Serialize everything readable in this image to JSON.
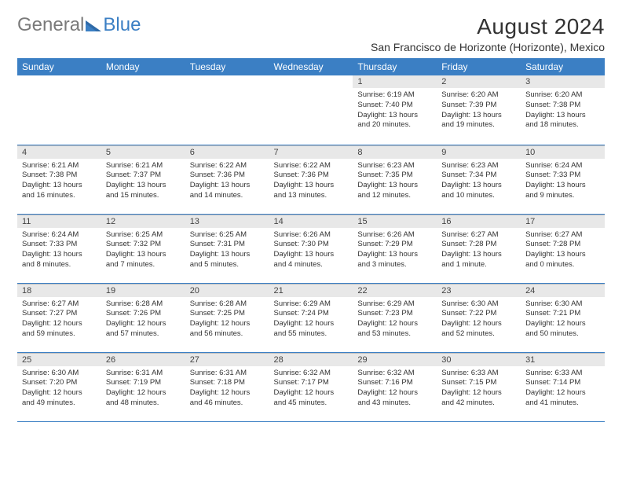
{
  "brand": {
    "general": "General",
    "blue": "Blue"
  },
  "title": "August 2024",
  "location": "San Francisco de Horizonte (Horizonte), Mexico",
  "columns": [
    "Sunday",
    "Monday",
    "Tuesday",
    "Wednesday",
    "Thursday",
    "Friday",
    "Saturday"
  ],
  "colors": {
    "header_bg": "#3b7fc4",
    "header_text": "#ffffff",
    "daynum_bg": "#e8e8e8",
    "row_border": "#3b7fc4",
    "logo_gray": "#7a7a7a",
    "logo_blue": "#3b7fc4"
  },
  "fonts": {
    "title_size_pt": 21,
    "location_size_pt": 10.5,
    "th_size_pt": 9,
    "cell_size_pt": 7
  },
  "first_weekday": 4,
  "days": [
    {
      "n": "1",
      "sunrise": "6:19 AM",
      "sunset": "7:40 PM",
      "dl1": "13 hours",
      "dl2": "and 20 minutes."
    },
    {
      "n": "2",
      "sunrise": "6:20 AM",
      "sunset": "7:39 PM",
      "dl1": "13 hours",
      "dl2": "and 19 minutes."
    },
    {
      "n": "3",
      "sunrise": "6:20 AM",
      "sunset": "7:38 PM",
      "dl1": "13 hours",
      "dl2": "and 18 minutes."
    },
    {
      "n": "4",
      "sunrise": "6:21 AM",
      "sunset": "7:38 PM",
      "dl1": "13 hours",
      "dl2": "and 16 minutes."
    },
    {
      "n": "5",
      "sunrise": "6:21 AM",
      "sunset": "7:37 PM",
      "dl1": "13 hours",
      "dl2": "and 15 minutes."
    },
    {
      "n": "6",
      "sunrise": "6:22 AM",
      "sunset": "7:36 PM",
      "dl1": "13 hours",
      "dl2": "and 14 minutes."
    },
    {
      "n": "7",
      "sunrise": "6:22 AM",
      "sunset": "7:36 PM",
      "dl1": "13 hours",
      "dl2": "and 13 minutes."
    },
    {
      "n": "8",
      "sunrise": "6:23 AM",
      "sunset": "7:35 PM",
      "dl1": "13 hours",
      "dl2": "and 12 minutes."
    },
    {
      "n": "9",
      "sunrise": "6:23 AM",
      "sunset": "7:34 PM",
      "dl1": "13 hours",
      "dl2": "and 10 minutes."
    },
    {
      "n": "10",
      "sunrise": "6:24 AM",
      "sunset": "7:33 PM",
      "dl1": "13 hours",
      "dl2": "and 9 minutes."
    },
    {
      "n": "11",
      "sunrise": "6:24 AM",
      "sunset": "7:33 PM",
      "dl1": "13 hours",
      "dl2": "and 8 minutes."
    },
    {
      "n": "12",
      "sunrise": "6:25 AM",
      "sunset": "7:32 PM",
      "dl1": "13 hours",
      "dl2": "and 7 minutes."
    },
    {
      "n": "13",
      "sunrise": "6:25 AM",
      "sunset": "7:31 PM",
      "dl1": "13 hours",
      "dl2": "and 5 minutes."
    },
    {
      "n": "14",
      "sunrise": "6:26 AM",
      "sunset": "7:30 PM",
      "dl1": "13 hours",
      "dl2": "and 4 minutes."
    },
    {
      "n": "15",
      "sunrise": "6:26 AM",
      "sunset": "7:29 PM",
      "dl1": "13 hours",
      "dl2": "and 3 minutes."
    },
    {
      "n": "16",
      "sunrise": "6:27 AM",
      "sunset": "7:28 PM",
      "dl1": "13 hours",
      "dl2": "and 1 minute."
    },
    {
      "n": "17",
      "sunrise": "6:27 AM",
      "sunset": "7:28 PM",
      "dl1": "13 hours",
      "dl2": "and 0 minutes."
    },
    {
      "n": "18",
      "sunrise": "6:27 AM",
      "sunset": "7:27 PM",
      "dl1": "12 hours",
      "dl2": "and 59 minutes."
    },
    {
      "n": "19",
      "sunrise": "6:28 AM",
      "sunset": "7:26 PM",
      "dl1": "12 hours",
      "dl2": "and 57 minutes."
    },
    {
      "n": "20",
      "sunrise": "6:28 AM",
      "sunset": "7:25 PM",
      "dl1": "12 hours",
      "dl2": "and 56 minutes."
    },
    {
      "n": "21",
      "sunrise": "6:29 AM",
      "sunset": "7:24 PM",
      "dl1": "12 hours",
      "dl2": "and 55 minutes."
    },
    {
      "n": "22",
      "sunrise": "6:29 AM",
      "sunset": "7:23 PM",
      "dl1": "12 hours",
      "dl2": "and 53 minutes."
    },
    {
      "n": "23",
      "sunrise": "6:30 AM",
      "sunset": "7:22 PM",
      "dl1": "12 hours",
      "dl2": "and 52 minutes."
    },
    {
      "n": "24",
      "sunrise": "6:30 AM",
      "sunset": "7:21 PM",
      "dl1": "12 hours",
      "dl2": "and 50 minutes."
    },
    {
      "n": "25",
      "sunrise": "6:30 AM",
      "sunset": "7:20 PM",
      "dl1": "12 hours",
      "dl2": "and 49 minutes."
    },
    {
      "n": "26",
      "sunrise": "6:31 AM",
      "sunset": "7:19 PM",
      "dl1": "12 hours",
      "dl2": "and 48 minutes."
    },
    {
      "n": "27",
      "sunrise": "6:31 AM",
      "sunset": "7:18 PM",
      "dl1": "12 hours",
      "dl2": "and 46 minutes."
    },
    {
      "n": "28",
      "sunrise": "6:32 AM",
      "sunset": "7:17 PM",
      "dl1": "12 hours",
      "dl2": "and 45 minutes."
    },
    {
      "n": "29",
      "sunrise": "6:32 AM",
      "sunset": "7:16 PM",
      "dl1": "12 hours",
      "dl2": "and 43 minutes."
    },
    {
      "n": "30",
      "sunrise": "6:33 AM",
      "sunset": "7:15 PM",
      "dl1": "12 hours",
      "dl2": "and 42 minutes."
    },
    {
      "n": "31",
      "sunrise": "6:33 AM",
      "sunset": "7:14 PM",
      "dl1": "12 hours",
      "dl2": "and 41 minutes."
    }
  ]
}
